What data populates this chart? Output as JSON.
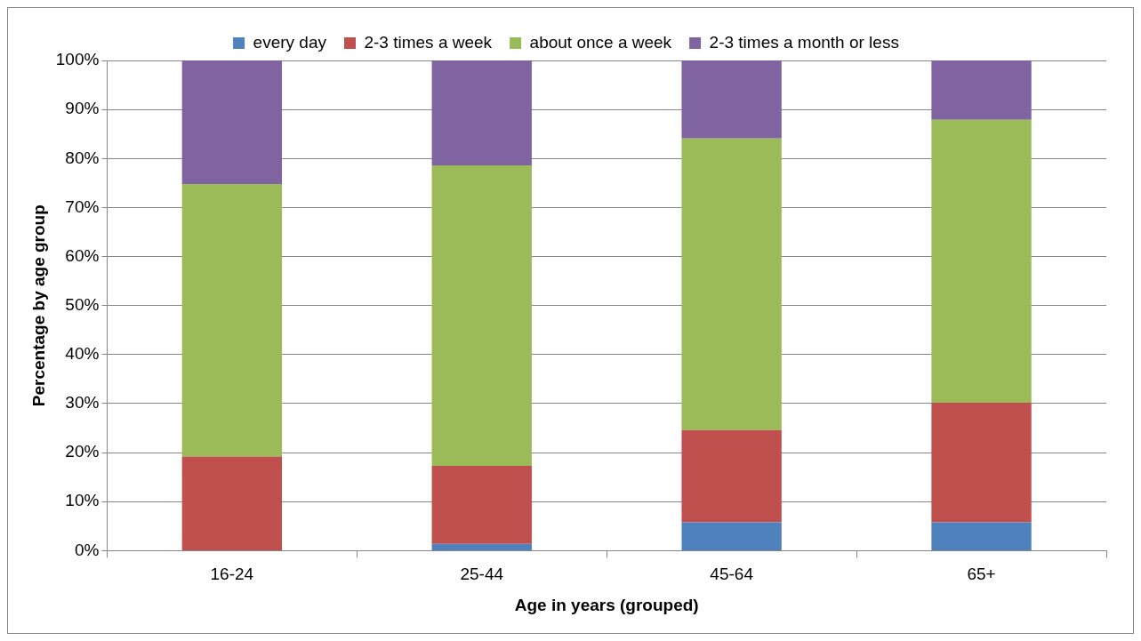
{
  "chart_data": {
    "type": "bar",
    "stacked": true,
    "xlabel": "Age in years (grouped)",
    "ylabel": "Percentage by age group",
    "categories": [
      "16-24",
      "25-44",
      "45-64",
      "65+"
    ],
    "series": [
      {
        "name": "every day",
        "color": "#4f81bd",
        "values": [
          0,
          1.4,
          5.8,
          5.8
        ]
      },
      {
        "name": "2-3 times a week",
        "color": "#c0504d",
        "values": [
          19.2,
          15.9,
          18.8,
          24.4
        ]
      },
      {
        "name": "about once a week",
        "color": "#9bbb59",
        "values": [
          55.6,
          61.3,
          59.5,
          57.7
        ]
      },
      {
        "name": "2-3 times a month or less",
        "color": "#8064a2",
        "values": [
          25.2,
          21.4,
          15.9,
          12.1
        ]
      }
    ],
    "ylim": [
      0,
      100
    ],
    "yticks": [
      {
        "value": 0,
        "label": "0%"
      },
      {
        "value": 10,
        "label": "10%"
      },
      {
        "value": 20,
        "label": "20%"
      },
      {
        "value": 30,
        "label": "30%"
      },
      {
        "value": 40,
        "label": "40%"
      },
      {
        "value": 50,
        "label": "50%"
      },
      {
        "value": 60,
        "label": "60%"
      },
      {
        "value": 70,
        "label": "70%"
      },
      {
        "value": 80,
        "label": "80%"
      },
      {
        "value": 90,
        "label": "90%"
      },
      {
        "value": 100,
        "label": "100%"
      }
    ],
    "grid": "y",
    "legend": "top"
  }
}
